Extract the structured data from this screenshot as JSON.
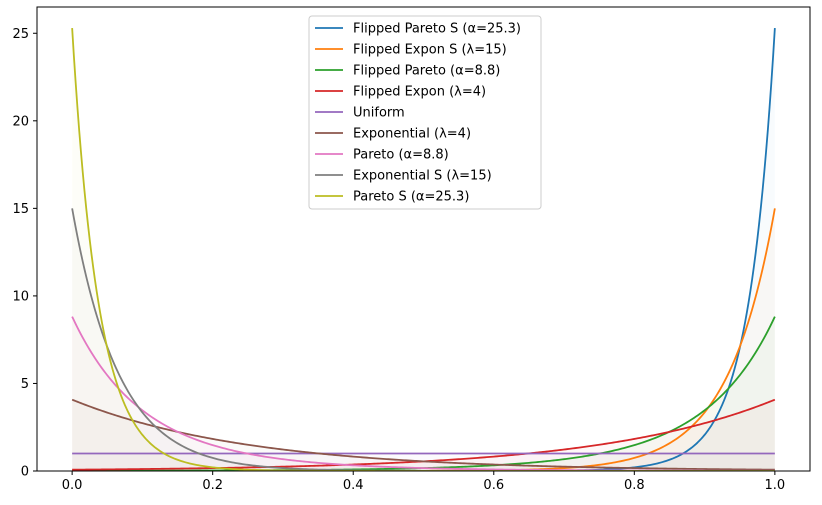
{
  "chart_data": {
    "type": "line",
    "title": "",
    "xlabel": "",
    "ylabel": "",
    "xlim": [
      -0.05,
      1.05
    ],
    "ylim": [
      0,
      26.5
    ],
    "xticks": [
      0.0,
      0.2,
      0.4,
      0.6,
      0.8,
      1.0
    ],
    "xtick_labels": [
      "0.0",
      "0.2",
      "0.4",
      "0.6",
      "0.8",
      "1.0"
    ],
    "yticks": [
      0,
      5,
      10,
      15,
      20,
      25
    ],
    "ytick_labels": [
      "0",
      "5",
      "10",
      "15",
      "20",
      "25"
    ],
    "grid": false,
    "legend_position": "top-center",
    "series": [
      {
        "name": "Flipped Pareto S (α=25.3)",
        "color": "#1f77b4",
        "kind": "pareto",
        "alpha": 25.3,
        "flipped": true
      },
      {
        "name": "Flipped Expon S (λ=15)",
        "color": "#ff7f0e",
        "kind": "expon",
        "lambda": 15,
        "flipped": true
      },
      {
        "name": "Flipped Pareto (α=8.8)",
        "color": "#2ca02c",
        "kind": "pareto",
        "alpha": 8.8,
        "flipped": true
      },
      {
        "name": "Flipped Expon (λ=4)",
        "color": "#d62728",
        "kind": "expon",
        "lambda": 4,
        "flipped": true
      },
      {
        "name": "Uniform",
        "color": "#9467bd",
        "kind": "uniform",
        "value": 1.0
      },
      {
        "name": "Exponential (λ=4)",
        "color": "#8c564b",
        "kind": "expon",
        "lambda": 4,
        "flipped": false
      },
      {
        "name": "Pareto (α=8.8)",
        "color": "#e377c2",
        "kind": "pareto",
        "alpha": 8.8,
        "flipped": false
      },
      {
        "name": "Exponential S (λ=15)",
        "color": "#7f7f7f",
        "kind": "expon",
        "lambda": 15,
        "flipped": false
      },
      {
        "name": "Pareto S (α=25.3)",
        "color": "#bcbd22",
        "kind": "pareto",
        "alpha": 25.3,
        "flipped": false
      }
    ]
  }
}
